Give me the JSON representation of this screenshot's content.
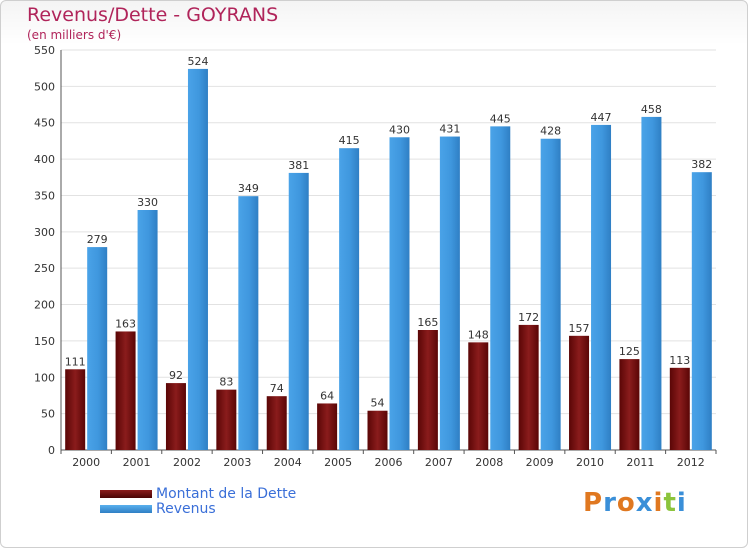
{
  "header": {
    "title": "Revenus/Dette - GOYRANS",
    "subtitle": "(en milliers d'€)"
  },
  "colors": {
    "dette": "#7a1010",
    "revenus": "#3f97de",
    "title": "#b0245a",
    "legend_text": "#3a6fd8"
  },
  "logo": {
    "text": "Proxiti",
    "letters": [
      "P",
      "r",
      "o",
      "x",
      "i",
      "t",
      "i"
    ],
    "letter_colors": [
      "#e07820",
      "#3a8fd8",
      "#e07820",
      "#3a8fd8",
      "#e07820",
      "#8cc43c",
      "#3a8fd8"
    ]
  },
  "chart_data": {
    "type": "bar",
    "title": "Revenus/Dette - GOYRANS",
    "subtitle": "(en milliers d'€)",
    "xlabel": "",
    "ylabel": "",
    "ylim": [
      0,
      550
    ],
    "yticks": [
      0,
      50,
      100,
      150,
      200,
      250,
      300,
      350,
      400,
      450,
      500,
      550
    ],
    "grid": true,
    "legend_placement": "bottom-left",
    "categories": [
      "2000",
      "2001",
      "2002",
      "2003",
      "2004",
      "2005",
      "2006",
      "2007",
      "2008",
      "2009",
      "2010",
      "2011",
      "2012"
    ],
    "series": [
      {
        "name": "Montant de la Dette",
        "color": "#7a1010",
        "values": [
          111,
          163,
          92,
          83,
          74,
          64,
          54,
          165,
          148,
          172,
          157,
          125,
          113
        ]
      },
      {
        "name": "Revenus",
        "color": "#3f97de",
        "values": [
          279,
          330,
          524,
          349,
          381,
          415,
          430,
          431,
          445,
          428,
          447,
          458,
          382
        ]
      }
    ]
  }
}
